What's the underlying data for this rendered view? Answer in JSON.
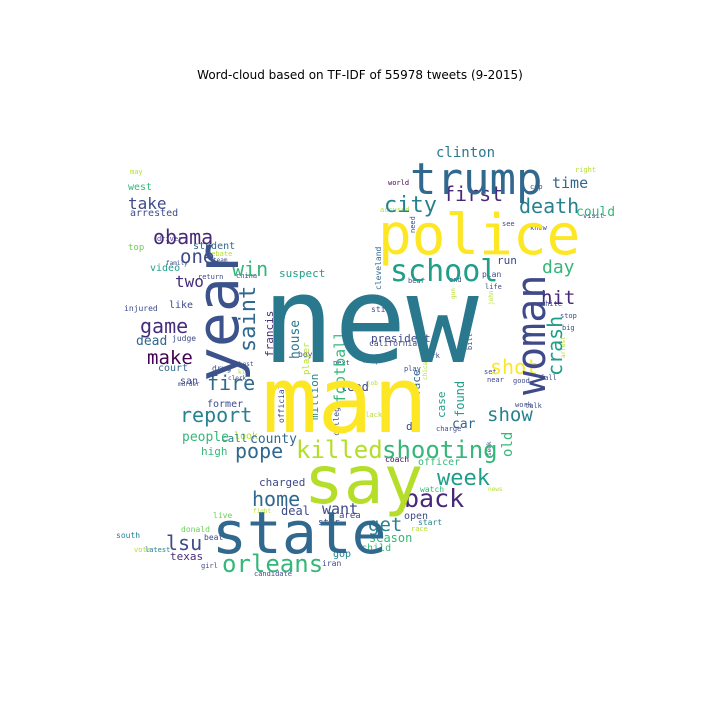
{
  "chart_data": {
    "type": "wordcloud",
    "title": "Word-cloud based on TF-IDF of 55978 tweets (9-2015)",
    "colormap": "viridis",
    "shape": "twitter-bird",
    "words": [
      {
        "text": "new",
        "weight": 1.0,
        "color": "#2a788e"
      },
      {
        "text": "man",
        "weight": 0.82,
        "color": "#fde725"
      },
      {
        "text": "say",
        "weight": 0.62,
        "color": "#b5de2b"
      },
      {
        "text": "state",
        "weight": 0.56,
        "color": "#31688e"
      },
      {
        "text": "police",
        "weight": 0.55,
        "color": "#fde725"
      },
      {
        "text": "year",
        "weight": 0.52,
        "color": "#3b528b"
      },
      {
        "text": "trump",
        "weight": 0.48,
        "color": "#31688e"
      },
      {
        "text": "woman",
        "weight": 0.42,
        "color": "#3e4a89"
      },
      {
        "text": "school",
        "weight": 0.36,
        "color": "#1f9e89"
      },
      {
        "text": "killed",
        "weight": 0.31,
        "color": "#b5de2b"
      },
      {
        "text": "shooting",
        "weight": 0.3,
        "color": "#35b779"
      },
      {
        "text": "orleans",
        "weight": 0.29,
        "color": "#35b779"
      },
      {
        "text": "back",
        "weight": 0.29,
        "color": "#482878"
      },
      {
        "text": "saint",
        "weight": 0.28,
        "color": "#31688e"
      },
      {
        "text": "crash",
        "weight": 0.28,
        "color": "#1f9e89"
      },
      {
        "text": "death",
        "weight": 0.27,
        "color": "#26828e"
      },
      {
        "text": "city",
        "weight": 0.27,
        "color": "#26828e"
      },
      {
        "text": "week",
        "weight": 0.27,
        "color": "#1f9e89"
      },
      {
        "text": "report",
        "weight": 0.26,
        "color": "#26828e"
      },
      {
        "text": "pope",
        "weight": 0.26,
        "color": "#31688e"
      },
      {
        "text": "home",
        "weight": 0.26,
        "color": "#31688e"
      },
      {
        "text": "lsu",
        "weight": 0.26,
        "color": "#3e4a89"
      },
      {
        "text": "obama",
        "weight": 0.25,
        "color": "#482878"
      },
      {
        "text": "shot",
        "weight": 0.25,
        "color": "#fde725"
      },
      {
        "text": "first",
        "weight": 0.24,
        "color": "#482878"
      },
      {
        "text": "fire",
        "weight": 0.24,
        "color": "#31688e"
      },
      {
        "text": "win",
        "weight": 0.24,
        "color": "#35b779"
      },
      {
        "text": "game",
        "weight": 0.24,
        "color": "#472d7b"
      },
      {
        "text": "show",
        "weight": 0.24,
        "color": "#26828e"
      },
      {
        "text": "hit",
        "weight": 0.23,
        "color": "#482878"
      },
      {
        "text": "make",
        "weight": 0.23,
        "color": "#440154"
      },
      {
        "text": "get",
        "weight": 0.23,
        "color": "#26828e"
      },
      {
        "text": "day",
        "weight": 0.22,
        "color": "#35b779"
      },
      {
        "text": "one",
        "weight": 0.22,
        "color": "#3e4a89"
      },
      {
        "text": "football",
        "weight": 0.2,
        "color": "#35b779"
      },
      {
        "text": "time",
        "weight": 0.19,
        "color": "#31688e"
      },
      {
        "text": "clinton",
        "weight": 0.19,
        "color": "#2a788e"
      },
      {
        "text": "take",
        "weight": 0.19,
        "color": "#3e4a89"
      },
      {
        "text": "two",
        "weight": 0.19,
        "color": "#472d7b"
      },
      {
        "text": "want",
        "weight": 0.19,
        "color": "#3e4a89"
      },
      {
        "text": "house",
        "weight": 0.18,
        "color": "#2a788e"
      },
      {
        "text": "old",
        "weight": 0.17,
        "color": "#35b779"
      },
      {
        "text": "county",
        "weight": 0.16,
        "color": "#31688e"
      },
      {
        "text": "people",
        "weight": 0.15,
        "color": "#35b779"
      },
      {
        "text": "francis",
        "weight": 0.15,
        "color": "#472d7b"
      },
      {
        "text": "dead",
        "weight": 0.15,
        "color": "#31688e"
      },
      {
        "text": "could",
        "weight": 0.13,
        "color": "#35b779"
      },
      {
        "text": "season",
        "weight": 0.12,
        "color": "#35b779"
      },
      {
        "text": "suspect",
        "weight": 0.12,
        "color": "#1f9e89"
      },
      {
        "text": "charged",
        "weight": 0.12,
        "color": "#3e4a89"
      },
      {
        "text": "high",
        "weight": 0.12,
        "color": "#35b779"
      },
      {
        "text": "call",
        "weight": 0.12,
        "color": "#26828e"
      },
      {
        "text": "court",
        "weight": 0.12,
        "color": "#31688e"
      },
      {
        "text": "car",
        "weight": 0.12,
        "color": "#31688e"
      },
      {
        "text": "found",
        "weight": 0.12,
        "color": "#1f9e89"
      },
      {
        "text": "case",
        "weight": 0.12,
        "color": "#1f9e89"
      },
      {
        "text": "face",
        "weight": 0.11,
        "color": "#31688e"
      },
      {
        "text": "president",
        "weight": 0.12,
        "color": "#3e4a89"
      },
      {
        "text": "lead",
        "weight": 0.12,
        "color": "#3e4a89"
      },
      {
        "text": "million",
        "weight": 0.11,
        "color": "#26828e"
      },
      {
        "text": "deal",
        "weight": 0.12,
        "color": "#3e4a89"
      },
      {
        "text": "student",
        "weight": 0.11,
        "color": "#31688e"
      },
      {
        "text": "video",
        "weight": 0.11,
        "color": "#1f9e89"
      },
      {
        "text": "like",
        "weight": 0.11,
        "color": "#3e4a89"
      },
      {
        "text": "look",
        "weight": 0.11,
        "color": "#b5de2b"
      },
      {
        "text": "san",
        "weight": 0.11,
        "color": "#3e4a89"
      },
      {
        "text": "former",
        "weight": 0.11,
        "color": "#3e4a89"
      },
      {
        "text": "texas",
        "weight": 0.11,
        "color": "#472d7b"
      },
      {
        "text": "child",
        "weight": 0.11,
        "color": "#35b779"
      },
      {
        "text": "open",
        "weight": 0.1,
        "color": "#3e4a89"
      },
      {
        "text": "officer",
        "weight": 0.1,
        "color": "#35b779"
      },
      {
        "text": "dy",
        "weight": 0.11,
        "color": "#3e4a89"
      },
      {
        "text": "run",
        "weight": 0.1,
        "color": "#3e4a89"
      },
      {
        "text": "arrested",
        "weight": 0.1,
        "color": "#3e4a89"
      },
      {
        "text": "west",
        "weight": 0.1,
        "color": "#35b779"
      },
      {
        "text": "top",
        "weight": 0.09,
        "color": "#6ece58"
      },
      {
        "text": "gop",
        "weight": 0.1,
        "color": "#26828e"
      },
      {
        "text": "star",
        "weight": 0.09,
        "color": "#3e4a89"
      },
      {
        "text": "area",
        "weight": 0.09,
        "color": "#3e4a89"
      },
      {
        "text": "player",
        "weight": 0.09,
        "color": "#b5de2b"
      },
      {
        "text": "boy",
        "weight": 0.08,
        "color": "#3e4a89"
      },
      {
        "text": "drug",
        "weight": 0.08,
        "color": "#3e4a89"
      },
      {
        "text": "cleveland",
        "weight": 0.08,
        "color": "#31688e"
      },
      {
        "text": "college",
        "weight": 0.08,
        "color": "#3e4a89"
      },
      {
        "text": "official",
        "weight": 0.08,
        "color": "#3e4a89"
      },
      {
        "text": "start",
        "weight": 0.08,
        "color": "#26828e"
      },
      {
        "text": "coach",
        "weight": 0.08,
        "color": "#440154"
      },
      {
        "text": "watch",
        "weight": 0.08,
        "color": "#35b779"
      },
      {
        "text": "iran",
        "weight": 0.08,
        "color": "#3e4a89"
      },
      {
        "text": "girl",
        "weight": 0.07,
        "color": "#3e4a89"
      },
      {
        "text": "beat",
        "weight": 0.07,
        "color": "#3e4a89"
      },
      {
        "text": "live",
        "weight": 0.07,
        "color": "#6ece58"
      },
      {
        "text": "donald",
        "weight": 0.07,
        "color": "#6ece58"
      },
      {
        "text": "south",
        "weight": 0.07,
        "color": "#26828e"
      },
      {
        "text": "vote",
        "weight": 0.06,
        "color": "#b5de2b"
      },
      {
        "text": "latest",
        "weight": 0.06,
        "color": "#26828e"
      },
      {
        "text": "candidate",
        "weight": 0.06,
        "color": "#3e4a89"
      },
      {
        "text": "injured",
        "weight": 0.07,
        "color": "#3e4a89"
      },
      {
        "text": "judge",
        "weight": 0.07,
        "color": "#3e4a89"
      },
      {
        "text": "family",
        "weight": 0.06,
        "color": "#3e4a89"
      },
      {
        "text": "murder",
        "weight": 0.06,
        "color": "#3e4a89"
      },
      {
        "text": "return",
        "weight": 0.06,
        "color": "#3e4a89"
      },
      {
        "text": "driver",
        "weight": 0.06,
        "color": "#3e4a89"
      },
      {
        "text": "may",
        "weight": 0.06,
        "color": "#b5de2b"
      },
      {
        "text": "debate",
        "weight": 0.06,
        "color": "#b5de2b"
      },
      {
        "text": "team",
        "weight": 0.06,
        "color": "#3e4a89"
      },
      {
        "text": "best",
        "weight": 0.06,
        "color": "#3e4a89"
      },
      {
        "text": "clerk",
        "weight": 0.06,
        "color": "#3e4a89"
      },
      {
        "text": "kid",
        "weight": 0.06,
        "color": "#b5de2b"
      },
      {
        "text": "china",
        "weight": 0.06,
        "color": "#3e4a89"
      },
      {
        "text": "california",
        "weight": 0.07,
        "color": "#3e4a89"
      },
      {
        "text": "still",
        "weight": 0.07,
        "color": "#3e4a89"
      },
      {
        "text": "accused",
        "weight": 0.07,
        "color": "#b5de2b"
      },
      {
        "text": "need",
        "weight": 0.06,
        "color": "#3e4a89"
      },
      {
        "text": "world",
        "weight": 0.06,
        "color": "#440154"
      },
      {
        "text": "see",
        "weight": 0.06,
        "color": "#3e4a89"
      },
      {
        "text": "know",
        "weight": 0.06,
        "color": "#3e4a89"
      },
      {
        "text": "visit",
        "weight": 0.06,
        "color": "#3e4a89"
      },
      {
        "text": "right",
        "weight": 0.06,
        "color": "#b5de2b"
      },
      {
        "text": "cop",
        "weight": 0.06,
        "color": "#3e4a89"
      },
      {
        "text": "plan",
        "weight": 0.07,
        "color": "#3e4a89"
      },
      {
        "text": "bear",
        "weight": 0.07,
        "color": "#3e4a89"
      },
      {
        "text": "end",
        "weight": 0.06,
        "color": "#3e4a89"
      },
      {
        "text": "gun",
        "weight": 0.06,
        "color": "#b5de2b"
      },
      {
        "text": "life",
        "weight": 0.06,
        "color": "#3e4a89"
      },
      {
        "text": "john",
        "weight": 0.06,
        "color": "#b5de2b"
      },
      {
        "text": "bill",
        "weight": 0.06,
        "color": "#3e4a89"
      },
      {
        "text": "park",
        "weight": 0.06,
        "color": "#3e4a89"
      },
      {
        "text": "stop",
        "weight": 0.06,
        "color": "#3e4a89"
      },
      {
        "text": "big",
        "weight": 0.06,
        "color": "#3e4a89"
      },
      {
        "text": "arrest",
        "weight": 0.05,
        "color": "#b5de2b"
      },
      {
        "text": "white",
        "weight": 0.06,
        "color": "#3e4a89"
      },
      {
        "text": "work",
        "weight": 0.06,
        "color": "#3e4a89"
      },
      {
        "text": "set",
        "weight": 0.06,
        "color": "#3e4a89"
      },
      {
        "text": "near",
        "weight": 0.06,
        "color": "#3e4a89"
      },
      {
        "text": "good",
        "weight": 0.06,
        "color": "#3e4a89"
      },
      {
        "text": "fall",
        "weight": 0.06,
        "color": "#3e4a89"
      },
      {
        "text": "talk",
        "weight": 0.06,
        "color": "#3e4a89"
      },
      {
        "text": "play",
        "weight": 0.06,
        "color": "#3e4a89"
      },
      {
        "text": "job",
        "weight": 0.06,
        "color": "#b5de2b"
      },
      {
        "text": "black",
        "weight": 0.06,
        "color": "#b5de2b"
      },
      {
        "text": "chicago",
        "weight": 0.06,
        "color": "#b5de2b"
      },
      {
        "text": "charge",
        "weight": 0.06,
        "color": "#3e4a89"
      },
      {
        "text": "seek",
        "weight": 0.06,
        "color": "#3e4a89"
      },
      {
        "text": "news",
        "weight": 0.05,
        "color": "#b5de2b"
      },
      {
        "text": "help",
        "weight": 0.06,
        "color": "#3e4a89"
      },
      {
        "text": "next",
        "weight": 0.06,
        "color": "#3e4a89"
      },
      {
        "text": "fight",
        "weight": 0.06,
        "color": "#b5de2b"
      },
      {
        "text": "race",
        "weight": 0.06,
        "color": "#b5de2b"
      }
    ]
  }
}
